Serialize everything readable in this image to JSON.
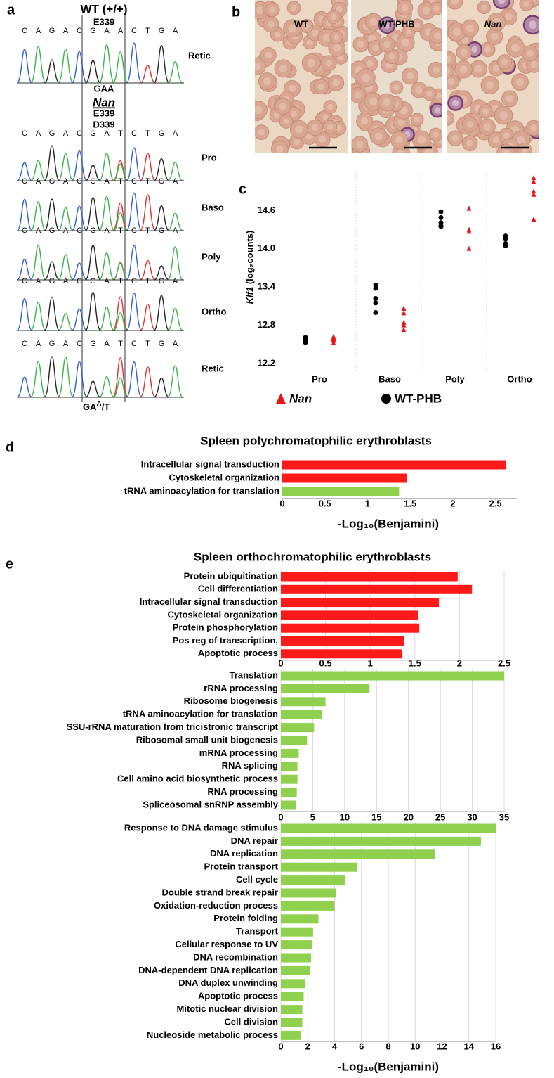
{
  "panel_a": {
    "label": "a",
    "wt_title": "WT (+/+)",
    "wt_codon_label": "E339",
    "wt_codon": "GAA",
    "nan_title": "Nan",
    "nan_codon_labels": [
      "E339",
      "D339"
    ],
    "wt_sequence": [
      "C",
      "A",
      "G",
      "A",
      "C",
      "G",
      "A",
      "A",
      "C",
      "T",
      "G",
      "A"
    ],
    "nan_sequence": [
      "C",
      "A",
      "G",
      "A",
      "C",
      "G",
      "A",
      "T",
      "C",
      "T",
      "G",
      "A"
    ],
    "wt_stage": "Retic",
    "nan_stages": [
      "Pro",
      "Baso",
      "Poly",
      "Ortho",
      "Retic"
    ],
    "nan_codon": {
      "base": "GA",
      "sup": "A",
      "tail": "/T"
    }
  },
  "panel_b": {
    "label": "b",
    "images": [
      "WT",
      "WT-PHB",
      "Nan"
    ]
  },
  "chart_data": [
    {
      "panel": "c",
      "type": "scatter",
      "ylabel_gene": "Klf1",
      "ylabel": " (log₂counts)",
      "categories": [
        "Pro",
        "Baso",
        "Poly",
        "Ortho"
      ],
      "series": [
        {
          "name": "Nan",
          "color": "#e8141b",
          "marker": "triangle",
          "values": [
            [
              12.52,
              12.56,
              12.6,
              12.62,
              12.58
            ],
            [
              13.06,
              12.99,
              12.84,
              12.8,
              12.73
            ],
            [
              14.63,
              14.3,
              14.27,
              14.0
            ],
            [
              15.11,
              15.05,
              14.9,
              14.85,
              14.46
            ]
          ]
        },
        {
          "name": "WT-PHB",
          "color": "#000000",
          "marker": "circle",
          "values": [
            [
              12.55,
              12.57,
              12.59,
              12.61,
              12.53
            ],
            [
              13.43,
              13.38,
              13.22,
              13.15,
              13.0
            ],
            [
              14.58,
              14.49,
              14.41,
              14.36,
              14.35
            ],
            [
              14.2,
              14.15,
              14.08,
              14.05,
              14.05
            ]
          ]
        }
      ],
      "ylim": [
        12.2,
        15.2
      ],
      "yticks": [
        12.2,
        12.8,
        13.4,
        {
          "value": 14,
          "label": "14.0"
        },
        14.6
      ]
    },
    {
      "panel": "d",
      "type": "hbar",
      "title": "Spleen polychromatophilic erythroblasts",
      "categories": [
        "Intracellular signal transduction",
        "Cytoskeletal organization",
        "tRNA aminoacylation for translation"
      ],
      "values": [
        2.62,
        1.46,
        1.37
      ],
      "colors": [
        "#ff1a1a",
        "#ff1a1a",
        "#8fd14f"
      ],
      "xlim": [
        0,
        2.75
      ],
      "xticks": [
        0,
        0.5,
        1,
        1.5,
        2,
        2.5
      ],
      "xlabel": "-Log₁₀(Benjamini)",
      "grid": false
    },
    {
      "panel": "e",
      "type": "hbar",
      "title": "Spleen orthochromatophilic erythroblasts",
      "categories": [
        "Protein ubiquitination",
        "Cell differentiation",
        "Intracellular signal transduction",
        "Cytoskeletal organization",
        "Protein phosphorylation",
        "Pos reg of transcription,",
        "Apoptotic process"
      ],
      "values": [
        1.98,
        2.14,
        1.77,
        1.54,
        1.55,
        1.38,
        1.36
      ],
      "color": "#ff1a1a",
      "xlim": [
        0,
        2.5
      ],
      "xticks": [
        0,
        0.5,
        1,
        1.5,
        2,
        2.5
      ],
      "grid": true
    },
    {
      "type": "hbar",
      "categories": [
        "Translation",
        "rRNA processing",
        "Ribosome biogenesis",
        "tRNA aminoacylation for translation",
        "SSU-rRNA maturation from tricistronic transcript",
        "Ribosomal small unit biogenesis",
        "mRNA processing",
        "RNA splicing",
        "Cell amino acid biosynthetic process",
        "RNA processing",
        "Spliceosomal snRNP assembly"
      ],
      "values": [
        35,
        13.9,
        7.0,
        6.4,
        5.2,
        4.1,
        2.8,
        2.6,
        2.6,
        2.5,
        2.4
      ],
      "color": "#8fd14f",
      "xlim": [
        0,
        35
      ],
      "xticks": [
        0,
        5,
        10,
        15,
        20,
        25,
        30,
        35
      ],
      "grid": true
    },
    {
      "type": "hbar",
      "categories": [
        "Response to DNA damage stimulus",
        "DNA repair",
        "DNA replication",
        "Protein transport",
        "Cell cycle",
        "Double strand break repair",
        "Oxidation-reduction process",
        "Protein folding",
        "Transport",
        "Cellular response to UV",
        "DNA recombination",
        "DNA-dependent DNA replication",
        "DNA duplex unwinding",
        "Apoptotic process",
        "Mitotic nuclear division",
        "Cell division",
        "Nucleoside metabolic process"
      ],
      "values": [
        16.0,
        14.9,
        11.5,
        5.7,
        4.8,
        4.1,
        4.0,
        2.8,
        2.4,
        2.35,
        2.25,
        2.2,
        1.8,
        1.7,
        1.6,
        1.6,
        1.5
      ],
      "color": "#8fd14f",
      "xlim": [
        0,
        16
      ],
      "xticks": [
        0,
        2,
        4,
        6,
        8,
        10,
        12,
        14,
        16
      ],
      "xlabel": "-Log₁₀(Benjamini)",
      "grid": true
    }
  ]
}
